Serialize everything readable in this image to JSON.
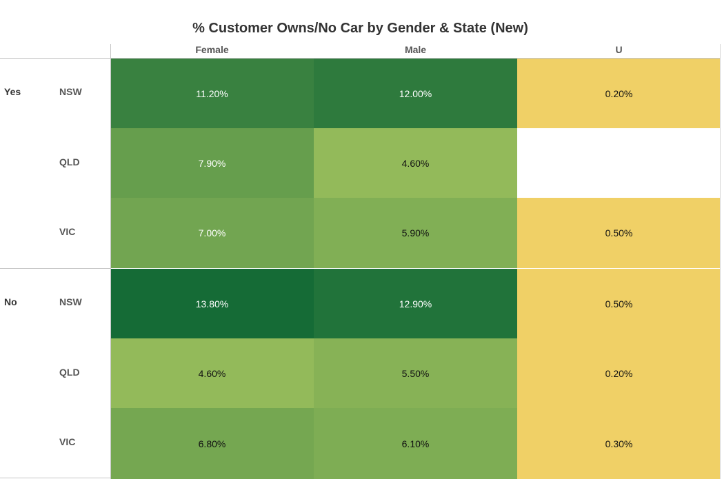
{
  "chart_data": {
    "type": "heatmap",
    "title": "% Customer Owns/No Car by Gender & State (New)",
    "columns": [
      "Female",
      "Male",
      "U"
    ],
    "groups": [
      {
        "label": "Yes",
        "rows": [
          {
            "state": "NSW",
            "values": [
              "11.20%",
              "12.00%",
              "0.20%"
            ],
            "numeric": [
              11.2,
              12.0,
              0.2
            ]
          },
          {
            "state": "QLD",
            "values": [
              "7.90%",
              "4.60%",
              ""
            ],
            "numeric": [
              7.9,
              4.6,
              null
            ]
          },
          {
            "state": "VIC",
            "values": [
              "7.00%",
              "5.90%",
              "0.50%"
            ],
            "numeric": [
              7.0,
              5.9,
              0.5
            ]
          }
        ]
      },
      {
        "label": "No",
        "rows": [
          {
            "state": "NSW",
            "values": [
              "13.80%",
              "12.90%",
              "0.50%"
            ],
            "numeric": [
              13.8,
              12.9,
              0.5
            ]
          },
          {
            "state": "QLD",
            "values": [
              "4.60%",
              "5.50%",
              "0.20%"
            ],
            "numeric": [
              4.6,
              5.5,
              0.2
            ]
          },
          {
            "state": "VIC",
            "values": [
              "6.80%",
              "6.10%",
              "0.30%"
            ],
            "numeric": [
              6.8,
              6.1,
              0.3
            ]
          }
        ]
      }
    ],
    "colors": {
      "low": "#f0d066",
      "mid": "#93ba5a",
      "high": "#156b36",
      "text_dark": "#111111",
      "text_light": "#ffffff"
    }
  }
}
